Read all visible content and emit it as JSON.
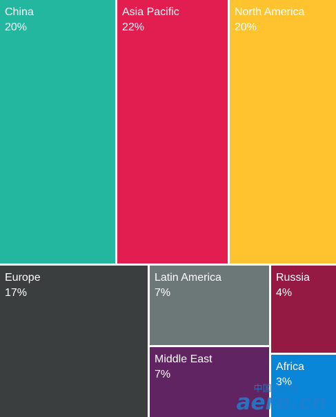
{
  "chart_data": {
    "type": "treemap",
    "title": "",
    "items": [
      {
        "name": "China",
        "label": "20%",
        "value": 20,
        "color": "#23b7a0"
      },
      {
        "name": "Asia Pacific",
        "label": "22%",
        "value": 22,
        "color": "#e21d50"
      },
      {
        "name": "North America",
        "label": "20%",
        "value": 20,
        "color": "#fec32f"
      },
      {
        "name": "Europe",
        "label": "17%",
        "value": 17,
        "color": "#3a3e3f"
      },
      {
        "name": "Latin America",
        "label": "7%",
        "value": 7,
        "color": "#6c7778"
      },
      {
        "name": "Middle East",
        "label": "7%",
        "value": 7,
        "color": "#612462"
      },
      {
        "name": "Russia",
        "label": "4%",
        "value": 4,
        "color": "#941a43"
      },
      {
        "name": "Africa",
        "label": "3%",
        "value": 3,
        "color": "#0a86d9"
      }
    ]
  },
  "watermark": {
    "line1": "中国航空网",
    "line2": "aero.cn",
    "color": "#1e7fd0"
  }
}
